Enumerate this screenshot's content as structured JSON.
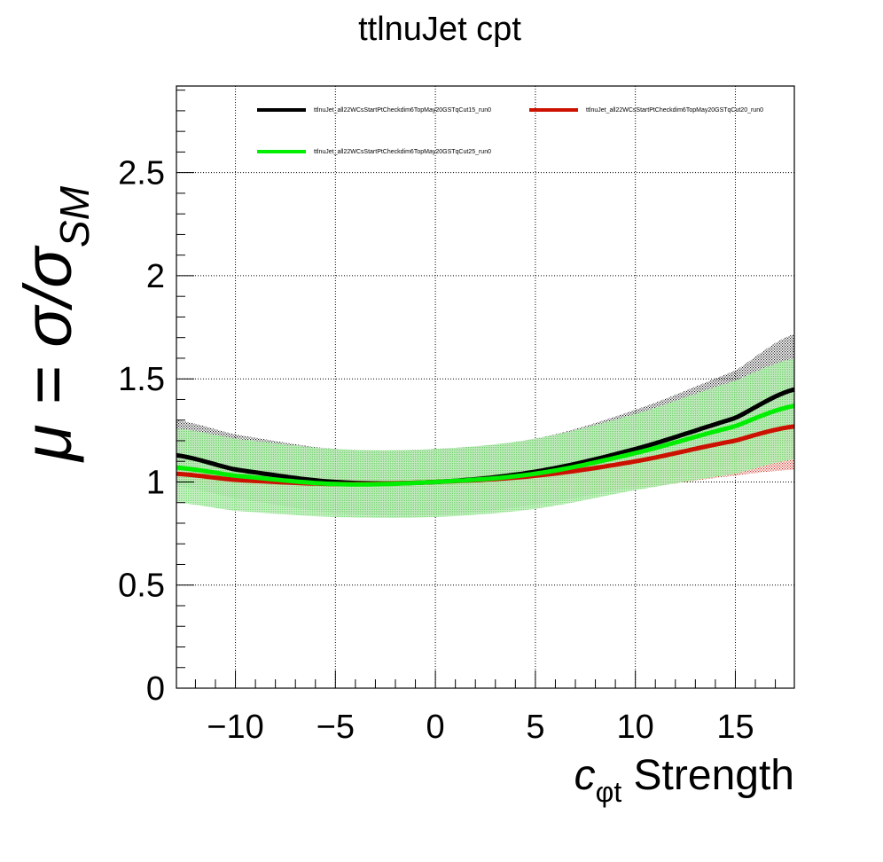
{
  "chart_data": {
    "type": "line",
    "title": "ttlnuJet cpt",
    "xlabel": {
      "symbol": "c",
      "subscript": "φt",
      "suffix": " Strength"
    },
    "ylabel": {
      "prefix": "μ = σ/σ",
      "subscript": "SM"
    },
    "xlim": [
      -12.95,
      17.95
    ],
    "ylim": [
      0,
      2.92
    ],
    "x_ticks": [
      -10,
      -5,
      0,
      5,
      10,
      15
    ],
    "x_tick_labels": [
      "−10",
      "−5",
      "0",
      "5",
      "10",
      "15"
    ],
    "y_ticks": [
      0,
      0.5,
      1,
      1.5,
      2,
      2.5
    ],
    "y_tick_labels": [
      "0",
      "0.5",
      "1",
      "1.5",
      "2",
      "2.5"
    ],
    "grid": true,
    "legend_position": "top",
    "series": [
      {
        "name": "ttlnuJet_all22WCsStartPtCheckdim6TopMay20GSTqCut15_run0",
        "color": "#000000",
        "x": [
          -13,
          -10,
          -5,
          0,
          5,
          10,
          15,
          18
        ],
        "y": [
          1.13,
          1.06,
          1.0,
          1.0,
          1.05,
          1.16,
          1.31,
          1.45
        ],
        "band_low": [
          0.98,
          0.92,
          0.85,
          0.84,
          0.89,
          0.98,
          1.09,
          1.2
        ],
        "band_high": [
          1.3,
          1.23,
          1.16,
          1.16,
          1.21,
          1.35,
          1.54,
          1.72
        ]
      },
      {
        "name": "ttlnuJet_all22WCsStartPtCheckdim6TopMay20GSTqCut20_run0",
        "color": "#cc1100",
        "x": [
          -13,
          -10,
          -5,
          0,
          5,
          10,
          15,
          18
        ],
        "y": [
          1.04,
          1.01,
          0.99,
          1.0,
          1.03,
          1.1,
          1.2,
          1.27
        ],
        "band_low": [
          1.0,
          0.98,
          0.97,
          0.97,
          0.95,
          0.97,
          1.03,
          1.06
        ],
        "band_high": [
          1.06,
          1.04,
          1.02,
          1.02,
          1.06,
          1.12,
          1.19,
          1.26
        ]
      },
      {
        "name": "ttlnuJet_all22WCsStartPtCheckdim6TopMay20GSTqCut25_run0",
        "color": "#00ee00",
        "x": [
          -13,
          -10,
          -5,
          0,
          5,
          10,
          15,
          18
        ],
        "y": [
          1.07,
          1.03,
          0.99,
          1.0,
          1.04,
          1.14,
          1.27,
          1.37
        ],
        "band_low": [
          0.9,
          0.86,
          0.83,
          0.83,
          0.87,
          0.96,
          1.04,
          1.11
        ],
        "band_high": [
          1.26,
          1.21,
          1.16,
          1.16,
          1.21,
          1.33,
          1.49,
          1.6
        ]
      }
    ]
  }
}
